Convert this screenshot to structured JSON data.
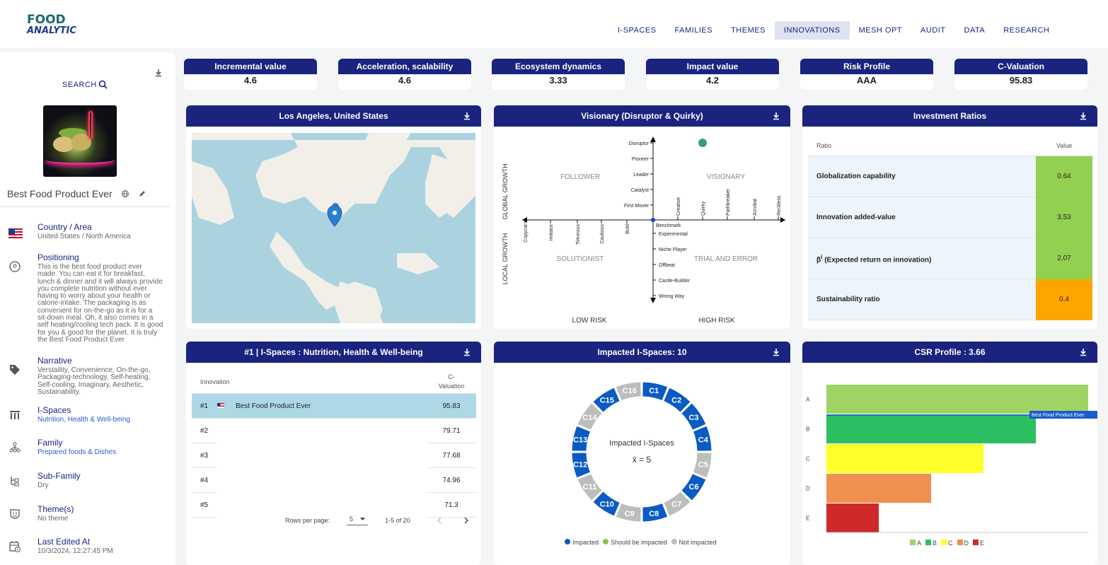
{
  "brand": {
    "line1": "FOOD",
    "line2": "ANALYTIC"
  },
  "nav": [
    {
      "label": "I-SPACES",
      "active": false
    },
    {
      "label": "FAMILIES",
      "active": false
    },
    {
      "label": "THEMES",
      "active": false
    },
    {
      "label": "INNOVATIONS",
      "active": true
    },
    {
      "label": "MESH OPT",
      "active": false
    },
    {
      "label": "AUDIT",
      "active": false
    },
    {
      "label": "DATA",
      "active": false
    },
    {
      "label": "RESEARCH",
      "active": false
    }
  ],
  "sidebar": {
    "search_label": "SEARCH",
    "product_name": "Best Food Product Ever",
    "fields": {
      "country": {
        "label": "Country / Area",
        "value": "United States / North America"
      },
      "positioning": {
        "label": "Positioning",
        "value": "This is the best food product ever made. You can eat it for breakfast, lunch & dinner and it will always provide you complete nutrition without ever having to worry about your health or calorie-intake. The packaging is as convenient for on-the-go as it is for a sit-down meal. Oh, it also comes in a self heating/cooling tech pack. It is good for you & good for the planet. It is truly the Best Food Product Ever"
      },
      "narrative": {
        "label": "Narrative",
        "value": "Verstaility, Convenience, On-the-go, Packaging-technology, Self-heating, Self-cooling, Imaginary, Aesthetic, Sustainability."
      },
      "ispaces": {
        "label": "I-Spaces",
        "value": "Nutrition, Health & Well-being"
      },
      "family": {
        "label": "Family",
        "value": "Prepared foods & Dishes"
      },
      "subfamily": {
        "label": "Sub-Family",
        "value": "Dry"
      },
      "themes": {
        "label": "Theme(s)",
        "value": "No theme"
      },
      "last_edited": {
        "label": "Last Edited At",
        "value": "10/3/2024, 12:27:45 PM"
      }
    }
  },
  "kpis": [
    {
      "label": "Incremental value",
      "value": "4.6"
    },
    {
      "label": "Acceleration, scalability",
      "value": "4.6"
    },
    {
      "label": "Ecosystem dynamics",
      "value": "3.33"
    },
    {
      "label": "Impact value",
      "value": "4.2"
    },
    {
      "label": "Risk Profile",
      "value": "AAA"
    },
    {
      "label": "C-Valuation",
      "value": "95.83"
    }
  ],
  "map_panel": {
    "title": "Los Angeles, United States"
  },
  "visionary_panel": {
    "title": "Visionary (Disruptor & Quirky)",
    "y_up_label": "GLOBAL GROWTH",
    "y_down_label": "LOCAL GROWTH",
    "x_left_label": "LOW RISK",
    "x_right_label": "HIGH RISK",
    "quadrants": {
      "tl": "FOLLOWER",
      "tr": "VISIONARY",
      "bl": "SOLUTIONIST",
      "br": "TRIAL AND ERROR"
    },
    "y_up_ticks": [
      "Disruptor",
      "Pioneer",
      "Leader",
      "Catalyst",
      "First Mover"
    ],
    "y_down_ticks": [
      "Experimental",
      "Niche Player",
      "Offbeat",
      "Castle-Builder",
      "Wrong Way"
    ],
    "x_right_ticks": [
      "Creative",
      "Quirky",
      "Pathbreaker",
      "Acrobat",
      "Reckless"
    ],
    "x_left_ticks": [
      "Copycat",
      "Imitator",
      "Timorous",
      "Cautious",
      "Bold"
    ],
    "origin_label": "Benchmark",
    "point": {
      "x": "Quirky",
      "y": "Disruptor"
    },
    "point_color": "#3a9a8c"
  },
  "ratios_panel": {
    "title": "Investment Ratios",
    "col_ratio": "Ratio",
    "col_value": "Value",
    "rows": [
      {
        "name": "Globalization capability",
        "value": "0.64",
        "color": "#92d050"
      },
      {
        "name": "Innovation added-value",
        "value": "3.53",
        "color": "#92d050"
      },
      {
        "name": "β",
        "sup": "i",
        "name_rest": " (Expected return on innovation)",
        "value": "2.07",
        "color": "#92d050"
      },
      {
        "name": "Sustainability ratio",
        "value": "0.4",
        "color": "#ffa500"
      }
    ]
  },
  "ispace_panel": {
    "title": "#1 | I-Spaces : Nutrition, Health & Well-being",
    "col_innovation": "Innovation",
    "col_valuation": "C-\nValuation",
    "rows": [
      {
        "rank": "#1",
        "name": "Best Food Product Ever",
        "value": "95.83",
        "selected": true
      },
      {
        "rank": "#2",
        "name": "",
        "value": "79.71",
        "selected": false
      },
      {
        "rank": "#3",
        "name": "",
        "value": "77.68",
        "selected": false
      },
      {
        "rank": "#4",
        "name": "",
        "value": "74.96",
        "selected": false
      },
      {
        "rank": "#5",
        "name": "",
        "value": "71.3",
        "selected": false
      }
    ],
    "rows_per_page_label": "Rows per page:",
    "rows_per_page": "5",
    "range": "1-5 of 20"
  },
  "impacted_panel": {
    "title": "Impacted I-Spaces: 10",
    "center_title": "Impacted I-Spaces",
    "center_value": "x̄ = 5",
    "segments": [
      {
        "label": "C1",
        "status": "impacted"
      },
      {
        "label": "C2",
        "status": "impacted"
      },
      {
        "label": "C3",
        "status": "impacted"
      },
      {
        "label": "C4",
        "status": "impacted"
      },
      {
        "label": "C5",
        "status": "not"
      },
      {
        "label": "C6",
        "status": "impacted"
      },
      {
        "label": "C7",
        "status": "not"
      },
      {
        "label": "C8",
        "status": "impacted"
      },
      {
        "label": "C9",
        "status": "not"
      },
      {
        "label": "C10",
        "status": "impacted"
      },
      {
        "label": "C11",
        "status": "not"
      },
      {
        "label": "C12",
        "status": "impacted"
      },
      {
        "label": "C13",
        "status": "impacted"
      },
      {
        "label": "C14",
        "status": "not"
      },
      {
        "label": "C15",
        "status": "impacted"
      },
      {
        "label": "C16",
        "status": "not"
      }
    ],
    "colors": {
      "impacted": "#0a5bc4",
      "should": "#8bc34a",
      "not": "#bdbdbd"
    },
    "legend": [
      {
        "label": "Impacted",
        "color": "#0a5bc4"
      },
      {
        "label": "Should be impacted",
        "color": "#8bc34a"
      },
      {
        "label": "Not impacted",
        "color": "#bdbdbd"
      }
    ]
  },
  "chart_data": {
    "type": "bar",
    "title": "CSR Profile : 3.66",
    "orientation": "horizontal",
    "categories": [
      "A",
      "B",
      "C",
      "D",
      "E"
    ],
    "values": [
      5,
      4,
      3,
      2,
      1
    ],
    "colors": [
      "#9fd464",
      "#2cbf61",
      "#ffff2a",
      "#f09050",
      "#cf2a2a"
    ],
    "xlim": [
      0,
      5
    ],
    "marker": {
      "label": "Best Food Product Ever",
      "value": 3.66
    },
    "legend": [
      "A",
      "B",
      "C",
      "D",
      "E"
    ],
    "legend_position": "bottom"
  }
}
